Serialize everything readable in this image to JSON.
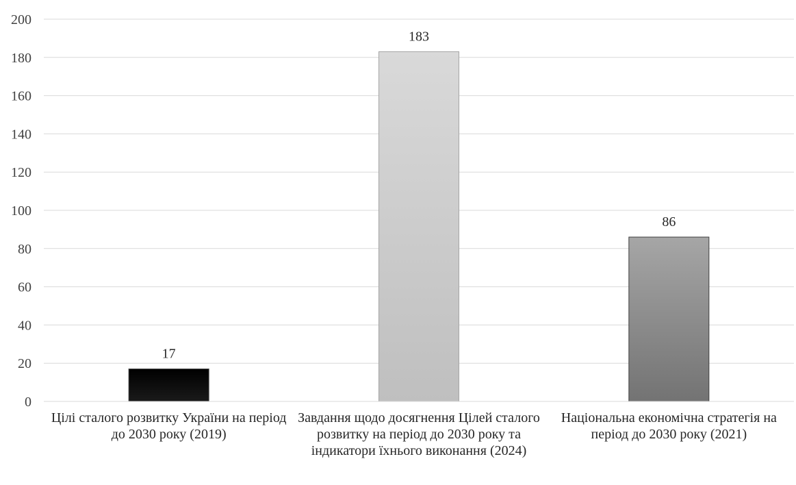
{
  "chart_data": {
    "type": "bar",
    "categories": [
      "Цілі сталого розвитку України на період до 2030 року (2019)",
      "Завдання щодо досягнення Цілей сталого розвитку на період до 2030 року та індикатори їхнього виконання (2024)",
      "Національна економічна стратегія на період до 2030 року (2021)"
    ],
    "values": [
      17,
      183,
      86
    ],
    "value_labels": [
      "17",
      "183",
      "86"
    ],
    "ylim": [
      0,
      200
    ],
    "yticks": [
      "0",
      "20",
      "40",
      "60",
      "80",
      "100",
      "120",
      "140",
      "160",
      "180",
      "200"
    ],
    "title": "",
    "xlabel": "",
    "ylabel": "",
    "grid": true,
    "bar_colors": [
      {
        "top": "#000000",
        "bottom": "#1a1a1a"
      },
      {
        "top": "#d9d9d9",
        "bottom": "#bfbfbf"
      },
      {
        "top": "#a6a6a6",
        "bottom": "#737373"
      }
    ],
    "gridline_color": "#d9d9d9"
  }
}
